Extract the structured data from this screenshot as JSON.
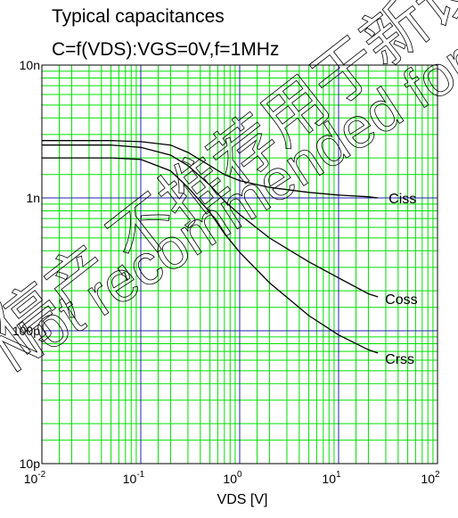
{
  "chart_data": {
    "type": "line",
    "title": "Typical capacitances",
    "subtitle": "C=f(VDS):VGS=0V,f=1MHz",
    "xlabel": "VDS [V]",
    "ylabel": "",
    "x_scale": "log",
    "y_scale": "log",
    "xlim": [
      0.01,
      100
    ],
    "ylim": [
      1e-11,
      1e-08
    ],
    "x_ticks": [
      {
        "value": 0.01,
        "base": "10",
        "exp": "-2"
      },
      {
        "value": 0.1,
        "base": "10",
        "exp": "-1"
      },
      {
        "value": 1,
        "base": "10",
        "exp": "0"
      },
      {
        "value": 10,
        "base": "10",
        "exp": "1"
      },
      {
        "value": 100,
        "base": "10",
        "exp": "2"
      }
    ],
    "y_ticks": [
      {
        "value": 1e-08,
        "label": "10n"
      },
      {
        "value": 1e-09,
        "label": "1n"
      },
      {
        "value": 1e-10,
        "label": "100p"
      },
      {
        "value": 1e-11,
        "label": "10p"
      }
    ],
    "grid": true,
    "series": [
      {
        "name": "Ciss",
        "x": [
          0.01,
          0.05,
          0.1,
          0.2,
          0.3,
          0.5,
          0.7,
          1,
          2,
          5,
          10,
          20,
          25
        ],
        "y": [
          2.7e-09,
          2.7e-09,
          2.65e-09,
          2.5e-09,
          2.2e-09,
          1.75e-09,
          1.5e-09,
          1.35e-09,
          1.2e-09,
          1.1e-09,
          1.05e-09,
          1.02e-09,
          1e-09
        ]
      },
      {
        "name": "Coss",
        "x": [
          0.01,
          0.05,
          0.1,
          0.2,
          0.3,
          0.5,
          0.7,
          1,
          2,
          5,
          10,
          20,
          25
        ],
        "y": [
          2.5e-09,
          2.5e-09,
          2.4e-09,
          2.1e-09,
          1.75e-09,
          1.25e-09,
          9.5e-10,
          7.5e-10,
          5e-10,
          3.3e-10,
          2.5e-10,
          1.9e-10,
          1.8e-10
        ]
      },
      {
        "name": "Crss",
        "x": [
          0.01,
          0.05,
          0.1,
          0.2,
          0.3,
          0.5,
          0.7,
          1,
          2,
          5,
          10,
          20,
          25
        ],
        "y": [
          2e-09,
          2e-09,
          1.95e-09,
          1.6e-09,
          1.2e-09,
          7.8e-10,
          5.4e-10,
          3.9e-10,
          2.3e-10,
          1.3e-10,
          9.3e-11,
          7.2e-11,
          6.8e-11
        ]
      }
    ],
    "watermark": "停产,不推荐用于新设计 Not recommended for new design."
  },
  "colors": {
    "minor_grid": "#00e000",
    "major_grid": "#2020b0",
    "curve": "#000000",
    "watermark": "#000000"
  }
}
